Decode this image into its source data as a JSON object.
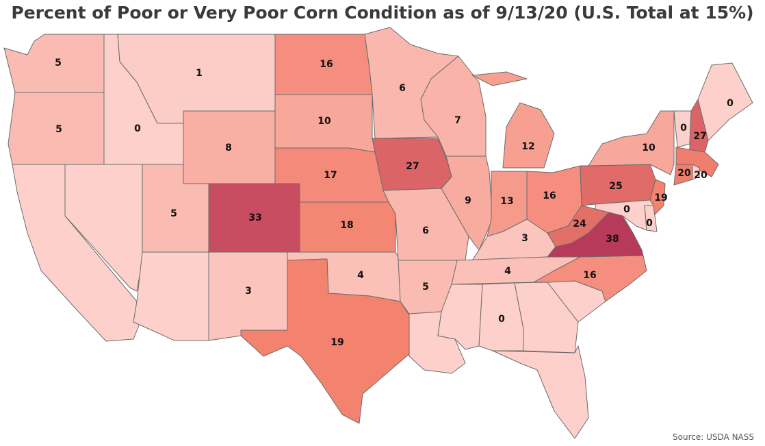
{
  "title": "Percent of Poor or Very Poor Corn Condition as of 9/13/20 (U.S. Total at 15%)",
  "source": "Source: USDA NASS",
  "color_scale": {
    "low": "#fdd0cb",
    "mid": "#f3826f",
    "high": "#b83a5a",
    "max_value": 38
  },
  "states": [
    {
      "id": "WA",
      "value": "5"
    },
    {
      "id": "OR",
      "value": "5"
    },
    {
      "id": "CA",
      "value": ""
    },
    {
      "id": "NV",
      "value": ""
    },
    {
      "id": "ID",
      "value": "0"
    },
    {
      "id": "MT",
      "value": "1"
    },
    {
      "id": "WY",
      "value": "8"
    },
    {
      "id": "UT",
      "value": "5"
    },
    {
      "id": "AZ",
      "value": ""
    },
    {
      "id": "CO",
      "value": "33"
    },
    {
      "id": "NM",
      "value": "3"
    },
    {
      "id": "ND",
      "value": "16"
    },
    {
      "id": "SD",
      "value": "10"
    },
    {
      "id": "NE",
      "value": "17"
    },
    {
      "id": "KS",
      "value": "18"
    },
    {
      "id": "OK",
      "value": "4"
    },
    {
      "id": "TX",
      "value": "19"
    },
    {
      "id": "MN",
      "value": "6"
    },
    {
      "id": "IA",
      "value": "27"
    },
    {
      "id": "MO",
      "value": "6"
    },
    {
      "id": "AR",
      "value": "5"
    },
    {
      "id": "LA",
      "value": ""
    },
    {
      "id": "WI",
      "value": "7"
    },
    {
      "id": "IL",
      "value": "9"
    },
    {
      "id": "MI",
      "value": "12"
    },
    {
      "id": "IN",
      "value": "13"
    },
    {
      "id": "OH",
      "value": "16"
    },
    {
      "id": "KY",
      "value": "3"
    },
    {
      "id": "TN",
      "value": "4"
    },
    {
      "id": "MS",
      "value": ""
    },
    {
      "id": "AL",
      "value": "0"
    },
    {
      "id": "GA",
      "value": ""
    },
    {
      "id": "FL",
      "value": ""
    },
    {
      "id": "SC",
      "value": ""
    },
    {
      "id": "NC",
      "value": "16"
    },
    {
      "id": "VA",
      "value": "38"
    },
    {
      "id": "WV",
      "value": "24"
    },
    {
      "id": "PA",
      "value": "25"
    },
    {
      "id": "NY",
      "value": "10"
    },
    {
      "id": "VT",
      "value": "0"
    },
    {
      "id": "NH",
      "value": "27"
    },
    {
      "id": "ME",
      "value": "0"
    },
    {
      "id": "MA",
      "value": "20"
    },
    {
      "id": "CT",
      "value": "20"
    },
    {
      "id": "RI",
      "value": ""
    },
    {
      "id": "NJ",
      "value": "19"
    },
    {
      "id": "DE",
      "value": "0"
    },
    {
      "id": "MD",
      "value": "0"
    }
  ]
}
